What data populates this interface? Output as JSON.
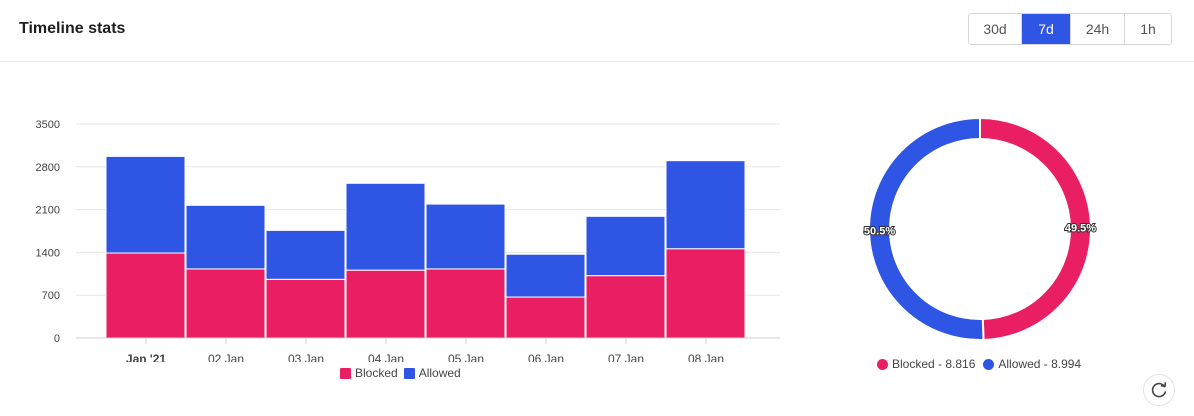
{
  "header": {
    "title": "Timeline stats",
    "ranges": [
      {
        "label": "30d",
        "active": false
      },
      {
        "label": "7d",
        "active": true
      },
      {
        "label": "24h",
        "active": false
      },
      {
        "label": "1h",
        "active": false
      }
    ]
  },
  "colors": {
    "blocked": "#e91e63",
    "allowed": "#2f55e4"
  },
  "chart_data": [
    {
      "type": "bar",
      "stacked": true,
      "categories": [
        "Jan '21",
        "02 Jan",
        "03 Jan",
        "04 Jan",
        "05 Jan",
        "06 Jan",
        "07 Jan",
        "08 Jan"
      ],
      "series": [
        {
          "name": "Blocked",
          "values": [
            1390,
            1130,
            960,
            1110,
            1130,
            670,
            1020,
            1460
          ]
        },
        {
          "name": "Allowed",
          "values": [
            1580,
            1040,
            800,
            1420,
            1060,
            700,
            970,
            1440
          ]
        }
      ],
      "yticks": [
        0,
        700,
        1400,
        2100,
        2800,
        3500
      ],
      "ylim": [
        0,
        3500
      ],
      "grid": true,
      "legend_position": "bottom"
    },
    {
      "type": "pie",
      "donut": true,
      "labels": [
        "Blocked",
        "Allowed"
      ],
      "values": [
        8.816,
        8.994
      ],
      "percent_labels": [
        "49.5%",
        "50.5%"
      ],
      "legend_labels": [
        "Blocked - 8.816",
        "Allowed - 8.994"
      ],
      "legend_position": "bottom"
    }
  ]
}
